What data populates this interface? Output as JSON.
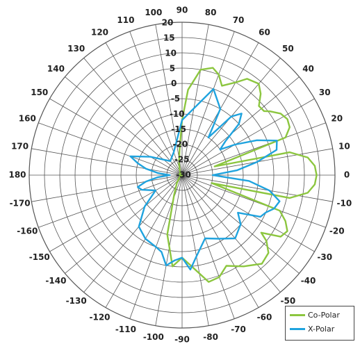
{
  "chart_data": {
    "type": "polar-line",
    "angle_ticks": [
      0,
      10,
      20,
      30,
      40,
      50,
      60,
      70,
      80,
      90,
      100,
      110,
      120,
      130,
      140,
      150,
      160,
      170,
      180,
      -170,
      -160,
      -150,
      -140,
      -130,
      -120,
      -110,
      -100,
      -90,
      -80,
      -70,
      -60,
      -50,
      -40,
      -30,
      -20,
      -10
    ],
    "radial_ticks": [
      20,
      15,
      10,
      5,
      0,
      -5,
      -10,
      -15,
      -20,
      -25,
      -30
    ],
    "rlim": [
      -30,
      20
    ],
    "grid": true,
    "legend_position": "bottom-right",
    "series": [
      {
        "name": "Co-Polar",
        "color": "#8cc63f",
        "theta": [
          0,
          4,
          8,
          12,
          15,
          20,
          24,
          28,
          32,
          36,
          38,
          42,
          46,
          50,
          56,
          60,
          66,
          70,
          74,
          80,
          86,
          90,
          96,
          104,
          114,
          126,
          140,
          160,
          180,
          200,
          220,
          236,
          248,
          256,
          264,
          270,
          276,
          284,
          290,
          296,
          304,
          312,
          318,
          322,
          324,
          328,
          332,
          336,
          340,
          345,
          348,
          352,
          356,
          360
        ],
        "r": [
          14,
          13.5,
          11.5,
          6,
          -19,
          6,
          8.5,
          9,
          8,
          5.5,
          4,
          3.8,
          7,
          9,
          8,
          5,
          2,
          5,
          6.5,
          5,
          -2,
          -12,
          -22,
          -26,
          -28,
          -29,
          -29.5,
          -29,
          -30,
          -29.5,
          -29,
          -27,
          -23,
          -10,
          0,
          -3,
          0,
          6,
          5.5,
          3,
          6,
          9,
          8,
          5,
          2,
          8,
          9,
          7,
          4,
          -20,
          6,
          11.5,
          13.5,
          14
        ]
      },
      {
        "name": "X-Polar",
        "color": "#1fa3de",
        "theta": [
          0,
          5,
          10,
          15,
          20,
          25,
          30,
          34,
          38,
          42,
          46,
          50,
          55,
          60,
          70,
          90,
          110,
          130,
          150,
          160,
          165,
          170,
          175,
          180,
          185,
          190,
          195,
          200,
          210,
          220,
          230,
          240,
          250,
          255,
          260,
          265,
          270,
          275,
          280,
          290,
          300,
          310,
          320,
          326,
          332,
          336,
          340,
          345,
          350,
          355,
          360
        ],
        "r": [
          -20,
          -12,
          -5,
          2,
          3,
          -3,
          -10,
          -15,
          -12,
          -5,
          -2,
          -5,
          -15,
          -5,
          0,
          -12,
          -22,
          -24,
          -18,
          -12,
          -15,
          -18,
          -22,
          -26,
          -22,
          -18,
          -15,
          -16,
          -20,
          -14,
          -8,
          -6,
          -5,
          -4,
          0,
          -2,
          -3,
          1,
          -3,
          -8,
          -6,
          -3,
          -5,
          -8,
          -1,
          0,
          2,
          3,
          -1,
          -8,
          -20
        ]
      }
    ]
  }
}
